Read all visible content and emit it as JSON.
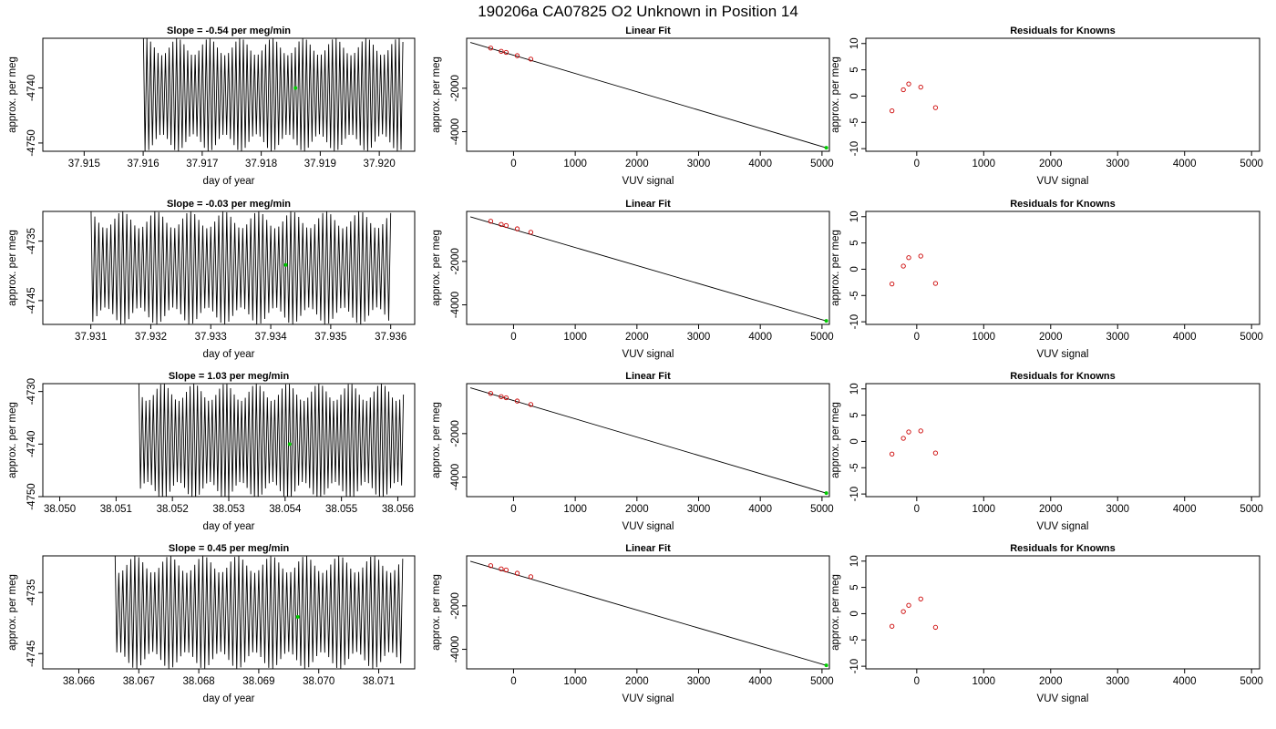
{
  "figure": {
    "title": "190206a     CA07825   O2 Unknown in Position  14",
    "colors": {
      "axes": "#000000",
      "trace": "#000000",
      "unknown_marker": "#00cc00",
      "residual_marker": "#cc0000"
    }
  },
  "chart_data": [
    {
      "type": "line",
      "row": 1,
      "panel": "time-series",
      "title": "Slope =  -0.54  per meg/min",
      "xlabel": "day of year",
      "ylabel": "approx. per meg",
      "xlim": [
        37.9143,
        37.9206
      ],
      "ylim": [
        -4751.5,
        -4731.0
      ],
      "xticks": [
        37.915,
        37.916,
        37.917,
        37.918,
        37.919,
        37.92
      ],
      "xtick_labels": [
        "37.915",
        "37.916",
        "37.917",
        "37.918",
        "37.919",
        "37.920"
      ],
      "yticks": [
        -4740,
        -4750
      ],
      "ytick_labels": [
        "-4740",
        "-4750"
      ],
      "trace": {
        "x_start": 37.916,
        "x_end": 37.9204,
        "cycles": 70,
        "y_min": -4751.5,
        "y_max": -4731.0
      },
      "marker": {
        "x": 37.91858,
        "y": -4740.0
      }
    },
    {
      "type": "scatter",
      "row": 1,
      "panel": "linear-fit",
      "title": "Linear Fit",
      "xlabel": "VUV signal",
      "ylabel": "approx. per meg",
      "xlim": [
        -760,
        5120
      ],
      "ylim": [
        -4900,
        300
      ],
      "xticks": [
        0,
        1000,
        2000,
        3000,
        4000,
        5000
      ],
      "xtick_labels": [
        "0",
        "1000",
        "2000",
        "3000",
        "4000",
        "5000"
      ],
      "yticks": [
        -2000,
        -4000
      ],
      "ytick_labels": [
        "-2000",
        "-4000"
      ],
      "line": {
        "x": [
          -700,
          5070
        ],
        "y": [
          108,
          -4740
        ]
      },
      "knowns": {
        "x": [
          -370,
          -200,
          -120,
          60,
          280
        ],
        "y": [
          -150,
          -300,
          -350,
          -500,
          -660
        ]
      },
      "unknown": {
        "x": 5070,
        "y": -4740
      }
    },
    {
      "type": "scatter",
      "row": 1,
      "panel": "residuals",
      "title": "Residuals for Knowns",
      "xlabel": "VUV signal",
      "ylabel": "approx. per meg",
      "xlim": [
        -760,
        5120
      ],
      "ylim": [
        -10.5,
        11
      ],
      "xticks": [
        0,
        1000,
        2000,
        3000,
        4000,
        5000
      ],
      "xtick_labels": [
        "0",
        "1000",
        "2000",
        "3000",
        "4000",
        "5000"
      ],
      "yticks": [
        -10,
        -5,
        0,
        5,
        10
      ],
      "ytick_labels": [
        "-10",
        "-5",
        "0",
        "5",
        "10"
      ],
      "x": [
        -370,
        -200,
        -120,
        60,
        280
      ],
      "y": [
        -2.8,
        1.2,
        2.3,
        1.7,
        -2.2
      ]
    },
    {
      "type": "line",
      "row": 2,
      "panel": "time-series",
      "title": "Slope =  -0.03  per meg/min",
      "xlabel": "day of year",
      "ylabel": "approx. per meg",
      "xlim": [
        37.9302,
        37.9364
      ],
      "ylim": [
        -4749.0,
        -4730.0
      ],
      "xticks": [
        37.931,
        37.932,
        37.933,
        37.934,
        37.935,
        37.936
      ],
      "xtick_labels": [
        "37.931",
        "37.932",
        "37.933",
        "37.934",
        "37.935",
        "37.936"
      ],
      "yticks": [
        -4735,
        -4745
      ],
      "ytick_labels": [
        "-4735",
        "-4745"
      ],
      "trace": {
        "x_start": 37.931,
        "x_end": 37.936,
        "cycles": 75,
        "y_min": -4749.0,
        "y_max": -4730.0
      },
      "marker": {
        "x": 37.93425,
        "y": -4739.0
      }
    },
    {
      "type": "scatter",
      "row": 2,
      "panel": "linear-fit",
      "title": "Linear Fit",
      "xlabel": "VUV signal",
      "ylabel": "approx. per meg",
      "xlim": [
        -760,
        5120
      ],
      "ylim": [
        -4900,
        300
      ],
      "xticks": [
        0,
        1000,
        2000,
        3000,
        4000,
        5000
      ],
      "xtick_labels": [
        "0",
        "1000",
        "2000",
        "3000",
        "4000",
        "5000"
      ],
      "yticks": [
        -2000,
        -4000
      ],
      "ytick_labels": [
        "-2000",
        "-4000"
      ],
      "line": {
        "x": [
          -700,
          5070
        ],
        "y": [
          50,
          -4740
        ]
      },
      "knowns": {
        "x": [
          -370,
          -200,
          -120,
          60,
          280
        ],
        "y": [
          -150,
          -300,
          -350,
          -500,
          -660
        ]
      },
      "unknown": {
        "x": 5070,
        "y": -4740
      }
    },
    {
      "type": "scatter",
      "row": 2,
      "panel": "residuals",
      "title": "Residuals for Knowns",
      "xlabel": "VUV signal",
      "ylabel": "approx. per meg",
      "xlim": [
        -760,
        5120
      ],
      "ylim": [
        -10.5,
        11
      ],
      "xticks": [
        0,
        1000,
        2000,
        3000,
        4000,
        5000
      ],
      "xtick_labels": [
        "0",
        "1000",
        "2000",
        "3000",
        "4000",
        "5000"
      ],
      "yticks": [
        -10,
        -5,
        0,
        5,
        10
      ],
      "ytick_labels": [
        "-10",
        "-5",
        "0",
        "5",
        "10"
      ],
      "x": [
        -370,
        -200,
        -120,
        60,
        280
      ],
      "y": [
        -2.8,
        0.6,
        2.2,
        2.5,
        -2.7
      ]
    },
    {
      "type": "line",
      "row": 3,
      "panel": "time-series",
      "title": "Slope =  1.03  per meg/min",
      "xlabel": "day of year",
      "ylabel": "approx. per meg",
      "xlim": [
        38.0497,
        38.0563
      ],
      "ylim": [
        -4750.0,
        -4728.5
      ],
      "xticks": [
        38.05,
        38.051,
        38.052,
        38.053,
        38.054,
        38.055,
        38.056
      ],
      "xtick_labels": [
        "38.050",
        "38.051",
        "38.052",
        "38.053",
        "38.054",
        "38.055",
        "38.056"
      ],
      "yticks": [
        -4730,
        -4740,
        -4750
      ],
      "ytick_labels": [
        "-4730",
        "-4740",
        "-4750"
      ],
      "trace": {
        "x_start": 38.0514,
        "x_end": 38.0561,
        "cycles": 72,
        "y_min": -4750.5,
        "y_max": -4728.5
      },
      "marker": {
        "x": 38.05408,
        "y": -4740.0
      }
    },
    {
      "type": "scatter",
      "row": 3,
      "panel": "linear-fit",
      "title": "Linear Fit",
      "xlabel": "VUV signal",
      "ylabel": "approx. per meg",
      "xlim": [
        -760,
        5120
      ],
      "ylim": [
        -4900,
        300
      ],
      "xticks": [
        0,
        1000,
        2000,
        3000,
        4000,
        5000
      ],
      "xtick_labels": [
        "0",
        "1000",
        "2000",
        "3000",
        "4000",
        "5000"
      ],
      "yticks": [
        -2000,
        -4000
      ],
      "ytick_labels": [
        "-2000",
        "-4000"
      ],
      "line": {
        "x": [
          -700,
          5070
        ],
        "y": [
          108,
          -4740
        ]
      },
      "knowns": {
        "x": [
          -370,
          -200,
          -120,
          60,
          280
        ],
        "y": [
          -150,
          -300,
          -350,
          -500,
          -660
        ]
      },
      "unknown": {
        "x": 5070,
        "y": -4740
      }
    },
    {
      "type": "scatter",
      "row": 3,
      "panel": "residuals",
      "title": "Residuals for Knowns",
      "xlabel": "VUV signal",
      "ylabel": "approx. per meg",
      "xlim": [
        -760,
        5120
      ],
      "ylim": [
        -10.5,
        11
      ],
      "xticks": [
        0,
        1000,
        2000,
        3000,
        4000,
        5000
      ],
      "xtick_labels": [
        "0",
        "1000",
        "2000",
        "3000",
        "4000",
        "5000"
      ],
      "yticks": [
        -10,
        -5,
        0,
        5,
        10
      ],
      "ytick_labels": [
        "-10",
        "-5",
        "0",
        "5",
        "10"
      ],
      "x": [
        -370,
        -200,
        -120,
        60,
        280
      ],
      "y": [
        -2.4,
        0.6,
        1.8,
        2.0,
        -2.2
      ]
    },
    {
      "type": "line",
      "row": 4,
      "panel": "time-series",
      "title": "Slope =  0.45  per meg/min",
      "xlabel": "day of year",
      "ylabel": "approx. per meg",
      "xlim": [
        38.0654,
        38.0716
      ],
      "ylim": [
        -4747.5,
        -4729.0
      ],
      "xticks": [
        38.066,
        38.067,
        38.068,
        38.069,
        38.07,
        38.071
      ],
      "xtick_labels": [
        "38.066",
        "38.067",
        "38.068",
        "38.069",
        "38.070",
        "38.071"
      ],
      "yticks": [
        -4735,
        -4745
      ],
      "ytick_labels": [
        "-4735",
        "-4745"
      ],
      "trace": {
        "x_start": 38.0666,
        "x_end": 38.0714,
        "cycles": 72,
        "y_min": -4747.5,
        "y_max": -4729.0
      },
      "marker": {
        "x": 38.06965,
        "y": -4739.0
      }
    },
    {
      "type": "scatter",
      "row": 4,
      "panel": "linear-fit",
      "title": "Linear Fit",
      "xlabel": "VUV signal",
      "ylabel": "approx. per meg",
      "xlim": [
        -760,
        5120
      ],
      "ylim": [
        -4900,
        300
      ],
      "xticks": [
        0,
        1000,
        2000,
        3000,
        4000,
        5000
      ],
      "xtick_labels": [
        "0",
        "1000",
        "2000",
        "3000",
        "4000",
        "5000"
      ],
      "yticks": [
        -2000,
        -4000
      ],
      "ytick_labels": [
        "-2000",
        "-4000"
      ],
      "line": {
        "x": [
          -700,
          5070
        ],
        "y": [
          50,
          -4740
        ]
      },
      "knowns": {
        "x": [
          -370,
          -200,
          -120,
          60,
          280
        ],
        "y": [
          -150,
          -300,
          -350,
          -500,
          -660
        ]
      },
      "unknown": {
        "x": 5070,
        "y": -4740
      }
    },
    {
      "type": "scatter",
      "row": 4,
      "panel": "residuals",
      "title": "Residuals for Knowns",
      "xlabel": "VUV signal",
      "ylabel": "approx. per meg",
      "xlim": [
        -760,
        5120
      ],
      "ylim": [
        -10.5,
        11
      ],
      "xticks": [
        0,
        1000,
        2000,
        3000,
        4000,
        5000
      ],
      "xtick_labels": [
        "0",
        "1000",
        "2000",
        "3000",
        "4000",
        "5000"
      ],
      "yticks": [
        -10,
        -5,
        0,
        5,
        10
      ],
      "ytick_labels": [
        "-10",
        "-5",
        "0",
        "5",
        "10"
      ],
      "x": [
        -370,
        -200,
        -120,
        60,
        280
      ],
      "y": [
        -2.4,
        0.4,
        1.6,
        2.8,
        -2.6
      ]
    }
  ]
}
